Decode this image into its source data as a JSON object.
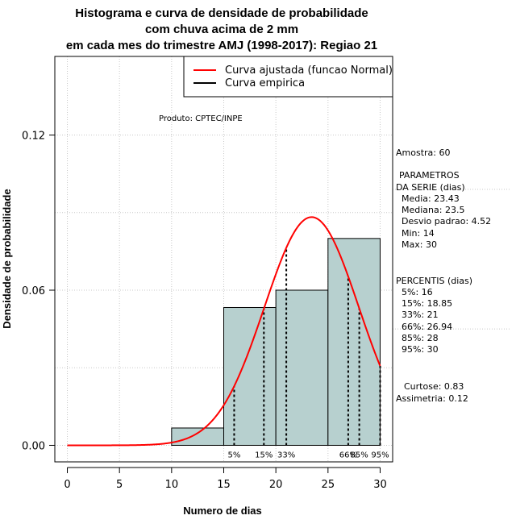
{
  "chart_data": {
    "type": "bar",
    "title_lines": [
      "Histograma e curva de densidade de probabilidade",
      "com chuva acima de 2 mm",
      "em cada mes do trimestre AMJ (1998-2017): Regiao 21"
    ],
    "xlabel": "Numero de dias",
    "ylabel": "Densidade de probabilidade",
    "xlim": [
      -1.2,
      31.2
    ],
    "ylim": [
      -0.0064,
      0.1504
    ],
    "x_ticks": [
      0,
      5,
      10,
      15,
      20,
      25,
      30
    ],
    "x_tick_labels": [
      "0",
      "5",
      "10",
      "15",
      "20",
      "25",
      "30"
    ],
    "y_ticks": [
      0.0,
      0.06,
      0.12
    ],
    "y_tick_labels": [
      "0.00",
      "0.06",
      "0.12"
    ],
    "grid": true,
    "bar_color": "#b7d0cf",
    "bins": [
      {
        "start": 10,
        "end": 15,
        "density": 0.0067
      },
      {
        "start": 15,
        "end": 20,
        "density": 0.0533
      },
      {
        "start": 20,
        "end": 25,
        "density": 0.06
      },
      {
        "start": 25,
        "end": 30,
        "density": 0.08
      }
    ],
    "normal_curve": {
      "mean": 23.43,
      "sd": 4.52,
      "x_from": 0,
      "x_to": 30,
      "color": "#ff0000",
      "name": "Curva ajustada (funcao Normal)"
    },
    "empirical_curve_name": "Curva empirica",
    "percentile_lines": [
      {
        "label": "5%",
        "x": 16
      },
      {
        "label": "15%",
        "x": 18.85
      },
      {
        "label": "33%",
        "x": 21
      },
      {
        "label": "66%",
        "x": 26.94
      },
      {
        "label": "85%",
        "x": 28
      },
      {
        "label": "95%",
        "x": 30
      }
    ],
    "legend_position": "top-right",
    "product_label": "Produto: CPTEC/INPE"
  },
  "stats_panel": {
    "sample": "Amostra: 60",
    "params_heading_1": "PARAMETROS",
    "params_heading_2": "DA SERIE (dias)",
    "params": [
      "Media: 23.43",
      "Mediana: 23.5",
      "Desvio padrao: 4.52",
      "Min: 14",
      "Max: 30"
    ],
    "percentis_heading": "PERCENTIS (dias)",
    "percentis": [
      "5%: 16",
      "15%: 18.85",
      "33%: 21",
      "66%: 26.94",
      "85%: 28",
      "95%: 30"
    ],
    "curtose": "Curtose: 0.83",
    "assimetria": "Assimetria: 0.12"
  }
}
